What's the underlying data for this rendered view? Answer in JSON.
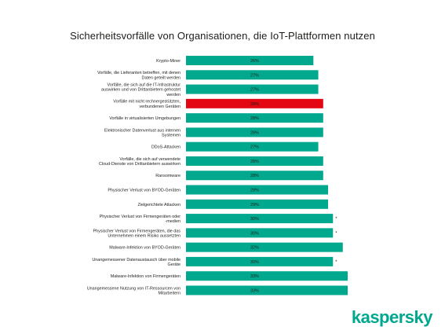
{
  "chart_data": {
    "type": "bar",
    "orientation": "horizontal",
    "title": "Sicherheitsvorfälle von Organisationen, die IoT-Plattformen nutzen",
    "value_suffix": "%",
    "colors": {
      "default": "#00a88e",
      "highlight": "#e30613"
    },
    "categories": [
      "Krypto-Miner",
      "Vorfälle, die Lieferanten betreffen, mit denen Daten geteilt werden",
      "Vorfälle, die sich auf die IT-Infrastruktur auswirken und von Drittanbietern gehostet werden",
      "Vorfälle mit nicht rechnergestützten, verbundenen Geräten",
      "Vorfälle in virtualisierten Umgebungen",
      "Elektronischer Datenverlust aus internen Systemen",
      "DDoS-Attacken",
      "Vorfälle, die sich auf verwendete Cloud-Dienste von Drittanbietern auswirken",
      "Ransomware",
      "Physischer Verlust von BYOD-Geräten",
      "Zielgerichtete Attacken",
      "Physischer Verlust von Firmengeräten oder -medien",
      "Physischer Verlust von Firmengeräten, die das Unternehmen einem Risiko aussetzten",
      "Malware-Infektion von BYOD-Geräten",
      "Unangemessener Datenaustausch über mobile Geräte",
      "Malware-Infektion von Firmengeräten",
      "Unangemessene Nutzung von IT-Ressourcen von Mitarbeitern"
    ],
    "values": [
      26,
      27,
      27,
      28,
      28,
      28,
      27,
      28,
      28,
      29,
      29,
      30,
      30,
      32,
      30,
      33,
      33
    ],
    "value_labels": [
      "26%",
      "27%",
      "27%",
      "28%",
      "28%",
      "28%",
      "27%",
      "28%",
      "28%",
      "29%",
      "29%",
      "30%",
      "30%",
      "32%",
      "30%",
      "33%",
      "33%"
    ],
    "highlight": [
      false,
      false,
      false,
      true,
      false,
      false,
      false,
      false,
      false,
      false,
      false,
      false,
      false,
      false,
      false,
      false,
      false
    ],
    "markers": [
      "",
      "",
      "",
      "",
      "",
      "",
      "",
      "",
      "",
      "",
      "",
      "*",
      "*",
      "",
      "*",
      "",
      ""
    ],
    "xlim": [
      0,
      33
    ]
  },
  "branding": {
    "logo_text": "kaspersky"
  }
}
